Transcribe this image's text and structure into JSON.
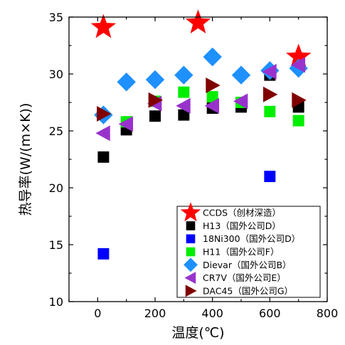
{
  "chart_data": {
    "type": "scatter",
    "xlabel": "温度(℃)",
    "ylabel": "热导率(W/(m×K))",
    "xlim": [
      -100,
      800
    ],
    "ylim": [
      10,
      35
    ],
    "x_ticks": [
      0,
      200,
      400,
      600,
      800
    ],
    "y_ticks": [
      10,
      15,
      20,
      25,
      30,
      35
    ],
    "x_minor_step": 100,
    "y_minor_step": 2.5,
    "grid": false,
    "legend_position": "bottom-right",
    "series": [
      {
        "name": "CCDS（创材深造）",
        "marker": "star",
        "color": "#ff0000",
        "points": [
          [
            20,
            34.1
          ],
          [
            350,
            34.5
          ],
          [
            700,
            31.5
          ]
        ]
      },
      {
        "name": "H13（国外公司D）",
        "marker": "square",
        "color": "#000000",
        "points": [
          [
            20,
            22.7
          ],
          [
            100,
            25.1
          ],
          [
            200,
            26.3
          ],
          [
            300,
            26.4
          ],
          [
            400,
            27.0
          ],
          [
            500,
            27.1
          ],
          [
            600,
            29.9
          ],
          [
            700,
            27.1
          ]
        ]
      },
      {
        "name": "18Ni300（国外公司D）",
        "marker": "square",
        "color": "#0000ff",
        "points": [
          [
            20,
            14.2
          ],
          [
            600,
            21.0
          ]
        ]
      },
      {
        "name": "H11（国外公司F）",
        "marker": "square",
        "color": "#00ee00",
        "points": [
          [
            100,
            25.8
          ],
          [
            200,
            27.6
          ],
          [
            300,
            28.4
          ],
          [
            400,
            28.0
          ],
          [
            500,
            27.5
          ],
          [
            600,
            26.7
          ],
          [
            700,
            25.9
          ]
        ]
      },
      {
        "name": "Dievar（国外公司B）",
        "marker": "diamond",
        "color": "#1e90ff",
        "points": [
          [
            20,
            26.4
          ],
          [
            100,
            29.3
          ],
          [
            200,
            29.5
          ],
          [
            300,
            29.9
          ],
          [
            400,
            31.5
          ],
          [
            500,
            29.9
          ],
          [
            600,
            30.3
          ],
          [
            700,
            30.5
          ]
        ]
      },
      {
        "name": "CR7V（国外公司E）",
        "marker": "triangle-left",
        "color": "#9932cc",
        "points": [
          [
            20,
            24.8
          ],
          [
            100,
            25.6
          ],
          [
            200,
            27.4
          ],
          [
            300,
            27.2
          ],
          [
            400,
            27.2
          ],
          [
            500,
            27.6
          ],
          [
            600,
            30.2
          ],
          [
            700,
            30.8
          ]
        ]
      },
      {
        "name": "DAC45（国外公司G）",
        "marker": "triangle-right",
        "color": "#800000",
        "points": [
          [
            20,
            26.5
          ],
          [
            200,
            27.7
          ],
          [
            400,
            29.0
          ],
          [
            600,
            28.2
          ],
          [
            700,
            27.7
          ]
        ]
      }
    ]
  }
}
